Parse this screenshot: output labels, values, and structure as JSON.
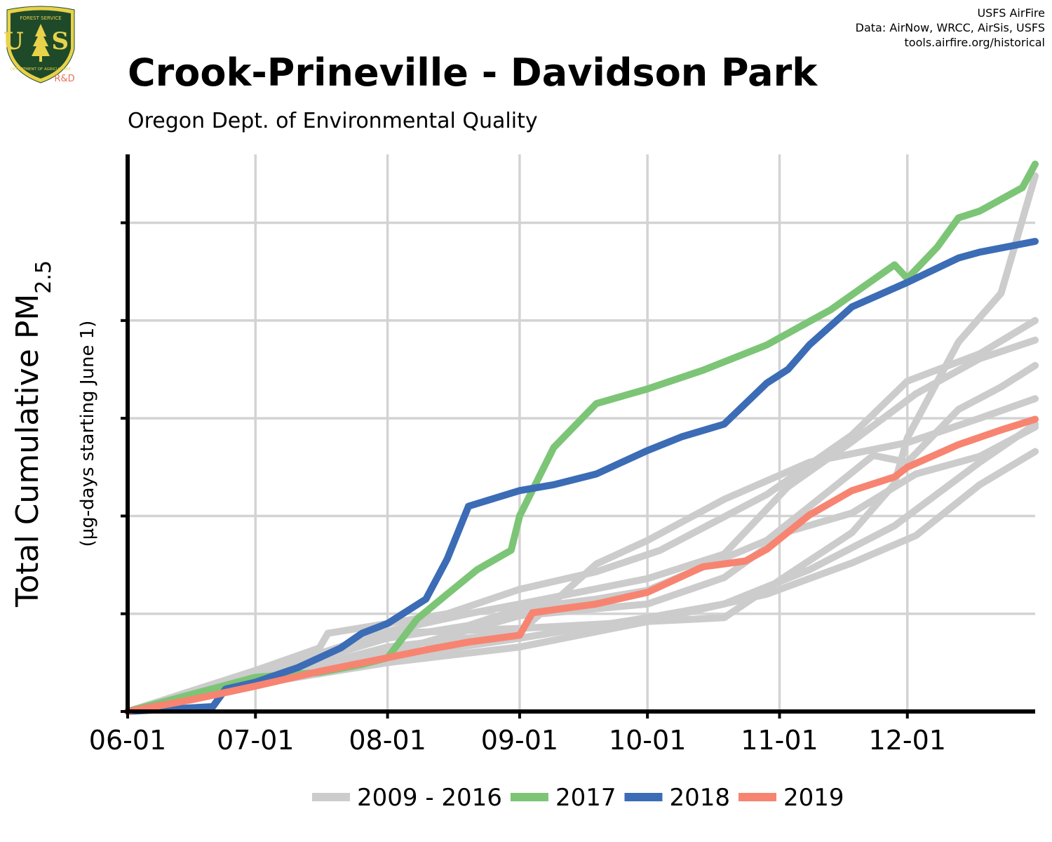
{
  "header": {
    "title": "Crook-Prineville - Davidson Park",
    "subtitle": "Oregon Dept. of Environmental Quality",
    "credits": [
      "USFS AirFire",
      "Data: AirNow, WRCC, AirSis, USFS",
      "tools.airfire.org/historical"
    ]
  },
  "logo": {
    "top_text": "FOREST SERVICE",
    "letters": "U S",
    "bottom_text": "DEPARTMENT OF AGRICULTURE",
    "tag": "R&D",
    "colors": {
      "shield": "#1f4a2a",
      "rim": "#e8d24a",
      "text": "#e8d24a",
      "tag": "#e8735a"
    }
  },
  "chart_data": {
    "type": "line",
    "ylabel": "Total Cumulative PM",
    "ylabel_sub": "2.5",
    "ylabel_note": "(µg-days starting June 1)",
    "x_start": "06-01",
    "x_end": "12-31",
    "xticks": [
      "06-01",
      "07-01",
      "08-01",
      "09-01",
      "10-01",
      "11-01",
      "12-01"
    ],
    "xtick_days": [
      0,
      30,
      61,
      92,
      122,
      153,
      183
    ],
    "ylim": [
      0,
      570
    ],
    "yticks": [
      0,
      100,
      200,
      300,
      400,
      500
    ],
    "ytick_labels_shown": false,
    "grid": true,
    "legend_position": "bottom",
    "colors": {
      "historical": "#cccccc",
      "2017": "#7cc576",
      "2018": "#3b6cb5",
      "2019": "#f78471"
    },
    "legend": [
      {
        "label": "2009 - 2016",
        "color": "#cccccc"
      },
      {
        "label": "2017",
        "color": "#7cc576"
      },
      {
        "label": "2018",
        "color": "#3b6cb5"
      },
      {
        "label": "2019",
        "color": "#f78471"
      }
    ],
    "series": [
      {
        "name": "2009 - 2016",
        "color": "#cccccc",
        "x": [
          0,
          30,
          45,
          47,
          61,
          75,
          92,
          110,
          125,
          150,
          170,
          183,
          200,
          213
        ],
        "y": [
          0,
          42,
          65,
          80,
          90,
          100,
          125,
          143,
          165,
          222,
          283,
          338,
          366,
          400
        ]
      },
      {
        "name": "2009 - 2016",
        "color": "#cccccc",
        "x": [
          0,
          30,
          61,
          70,
          80,
          92,
          110,
          122,
          150,
          165,
          175,
          183,
          195,
          205,
          213
        ],
        "y": [
          0,
          35,
          75,
          81,
          88,
          105,
          115,
          124,
          175,
          227,
          262,
          255,
          309,
          332,
          354
        ]
      },
      {
        "name": "2009 - 2016",
        "color": "#cccccc",
        "x": [
          0,
          30,
          61,
          92,
          122,
          140,
          160,
          180,
          200,
          213
        ],
        "y": [
          0,
          30,
          55,
          75,
          96,
          110,
          145,
          190,
          255,
          294
        ]
      },
      {
        "name": "2009 - 2016",
        "color": "#cccccc",
        "x": [
          0,
          30,
          61,
          92,
          122,
          150,
          170,
          185,
          200,
          213
        ],
        "y": [
          0,
          28,
          50,
          66,
          92,
          120,
          152,
          180,
          232,
          266
        ]
      },
      {
        "name": "2009 - 2016",
        "color": "#cccccc",
        "x": [
          0,
          30,
          61,
          80,
          92,
          122,
          140,
          155,
          170,
          185,
          200,
          213
        ],
        "y": [
          0,
          38,
          82,
          100,
          110,
          136,
          161,
          230,
          276,
          325,
          361,
          380
        ]
      },
      {
        "name": "2009 - 2016",
        "color": "#cccccc",
        "x": [
          0,
          30,
          61,
          92,
          122,
          140,
          155,
          170,
          185,
          200,
          213
        ],
        "y": [
          0,
          36,
          60,
          98,
          110,
          137,
          184,
          203,
          243,
          261,
          291
        ]
      },
      {
        "name": "2009 - 2016",
        "color": "#cccccc",
        "x": [
          0,
          30,
          61,
          92,
          122,
          140,
          155,
          170,
          180,
          183,
          195,
          205,
          213
        ],
        "y": [
          0,
          40,
          80,
          85,
          92,
          96,
          140,
          183,
          233,
          280,
          378,
          428,
          548
        ]
      },
      {
        "name": "2009 - 2016",
        "color": "#cccccc",
        "x": [
          0,
          30,
          61,
          92,
          110,
          122,
          140,
          160,
          183,
          200,
          213
        ],
        "y": [
          0,
          31,
          66,
          81,
          151,
          175,
          217,
          255,
          275,
          300,
          320
        ]
      },
      {
        "name": "2017",
        "color": "#7cc576",
        "x": [
          0,
          30,
          45,
          55,
          61,
          68,
          75,
          82,
          90,
          92,
          100,
          110,
          122,
          135,
          150,
          165,
          180,
          183,
          190,
          195,
          200,
          210,
          213
        ],
        "y": [
          0,
          35,
          40,
          48,
          55,
          95,
          120,
          145,
          165,
          200,
          270,
          315,
          330,
          349,
          375,
          411,
          457,
          443,
          475,
          505,
          512,
          536,
          560
        ]
      },
      {
        "name": "2018",
        "color": "#3b6cb5",
        "x": [
          0,
          20,
          23,
          30,
          40,
          50,
          55,
          61,
          70,
          75,
          80,
          92,
          100,
          110,
          122,
          130,
          140,
          150,
          155,
          160,
          170,
          183,
          195,
          200,
          213
        ],
        "y": [
          0,
          5,
          23,
          30,
          45,
          65,
          80,
          90,
          115,
          156,
          210,
          226,
          232,
          243,
          267,
          281,
          294,
          336,
          350,
          375,
          414,
          439,
          464,
          470,
          481
        ]
      },
      {
        "name": "2019",
        "color": "#f78471",
        "x": [
          0,
          15,
          30,
          45,
          61,
          70,
          80,
          92,
          95,
          100,
          110,
          122,
          135,
          145,
          150,
          160,
          170,
          180,
          183,
          195,
          205,
          213
        ],
        "y": [
          0,
          12,
          26,
          41,
          55,
          63,
          71,
          78,
          101,
          104,
          110,
          122,
          148,
          154,
          166,
          201,
          226,
          240,
          250,
          273,
          288,
          299
        ]
      }
    ]
  }
}
